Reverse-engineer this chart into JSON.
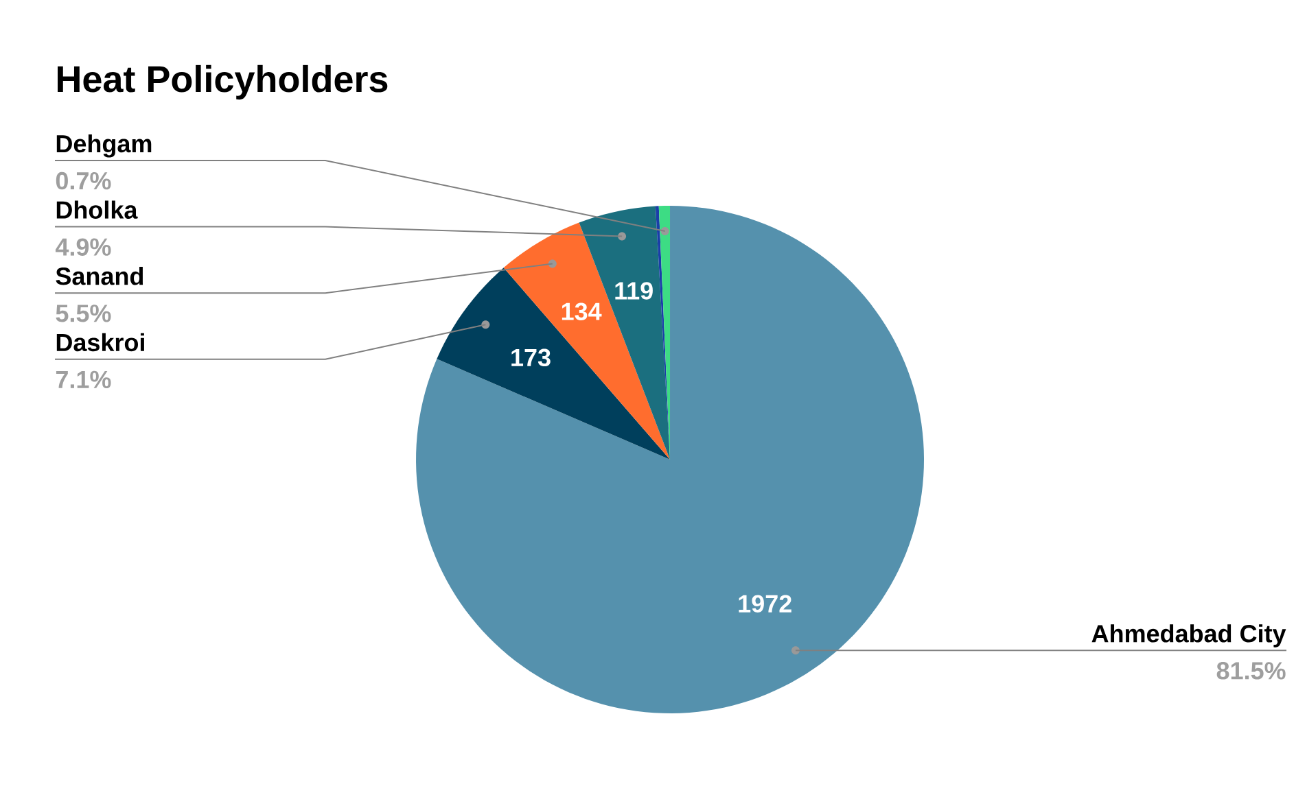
{
  "chart_data": {
    "type": "pie",
    "title": "Heat Policyholders",
    "categories": [
      "Ahmedabad City",
      "Daskroi",
      "Sanand",
      "Dholka",
      null,
      "Dehgam"
    ],
    "values": [
      1972,
      173,
      134,
      119,
      5,
      17
    ],
    "colors": [
      "#5591ad",
      "#003f5c",
      "#ff6d2e",
      "#1b6f7f",
      "#1a3ea8",
      "#3ddc84"
    ],
    "value_labels": [
      "1972",
      "173",
      "134",
      "119",
      null,
      null
    ],
    "annotations": [
      "81.5%",
      "7.1%",
      "5.5%",
      "4.9%",
      "0.7%"
    ]
  }
}
